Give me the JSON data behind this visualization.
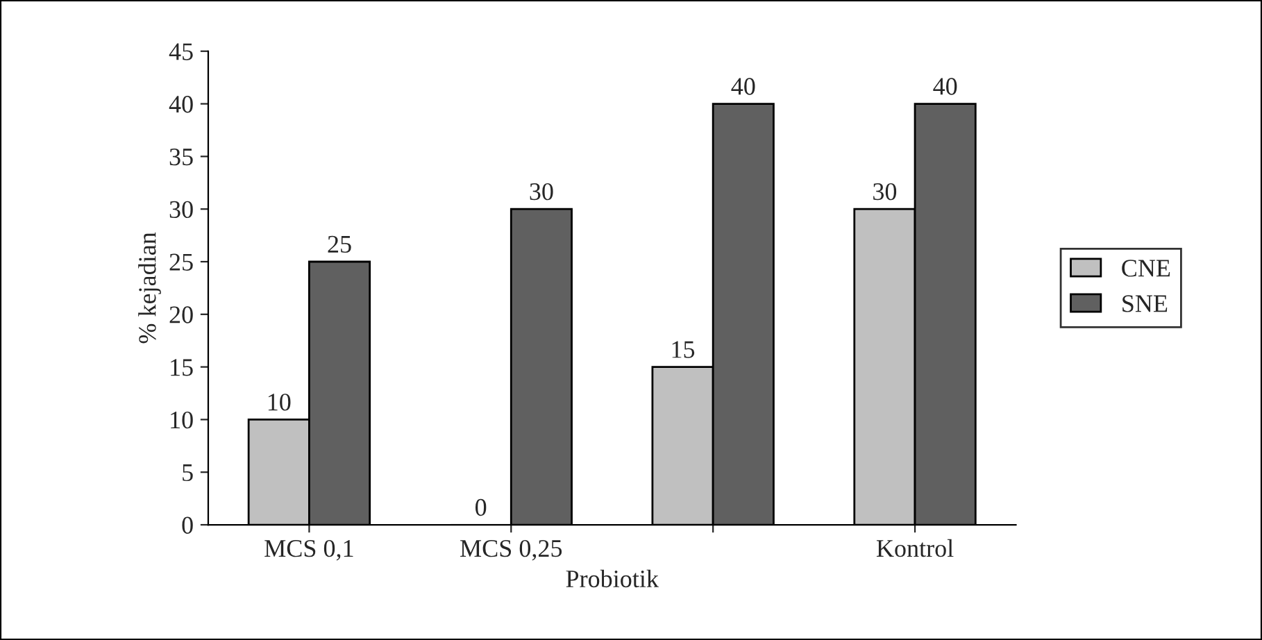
{
  "chart_data": {
    "type": "bar",
    "xlabel": "Probiotik",
    "ylabel": "% kejadian",
    "categories": [
      "MCS 0,1",
      "MCS 0,25",
      null,
      "Kontrol"
    ],
    "series": [
      {
        "name": "CNE",
        "color": "#c0c0c0",
        "values": [
          10,
          0,
          15,
          30
        ]
      },
      {
        "name": "SNE",
        "color": "#606060",
        "values": [
          25,
          30,
          40,
          40
        ]
      }
    ],
    "ylim": [
      0,
      45
    ],
    "yticks": [
      0,
      5,
      10,
      15,
      20,
      25,
      30,
      35,
      40,
      45
    ],
    "data_labels": true,
    "legend": "right",
    "grid": false
  }
}
